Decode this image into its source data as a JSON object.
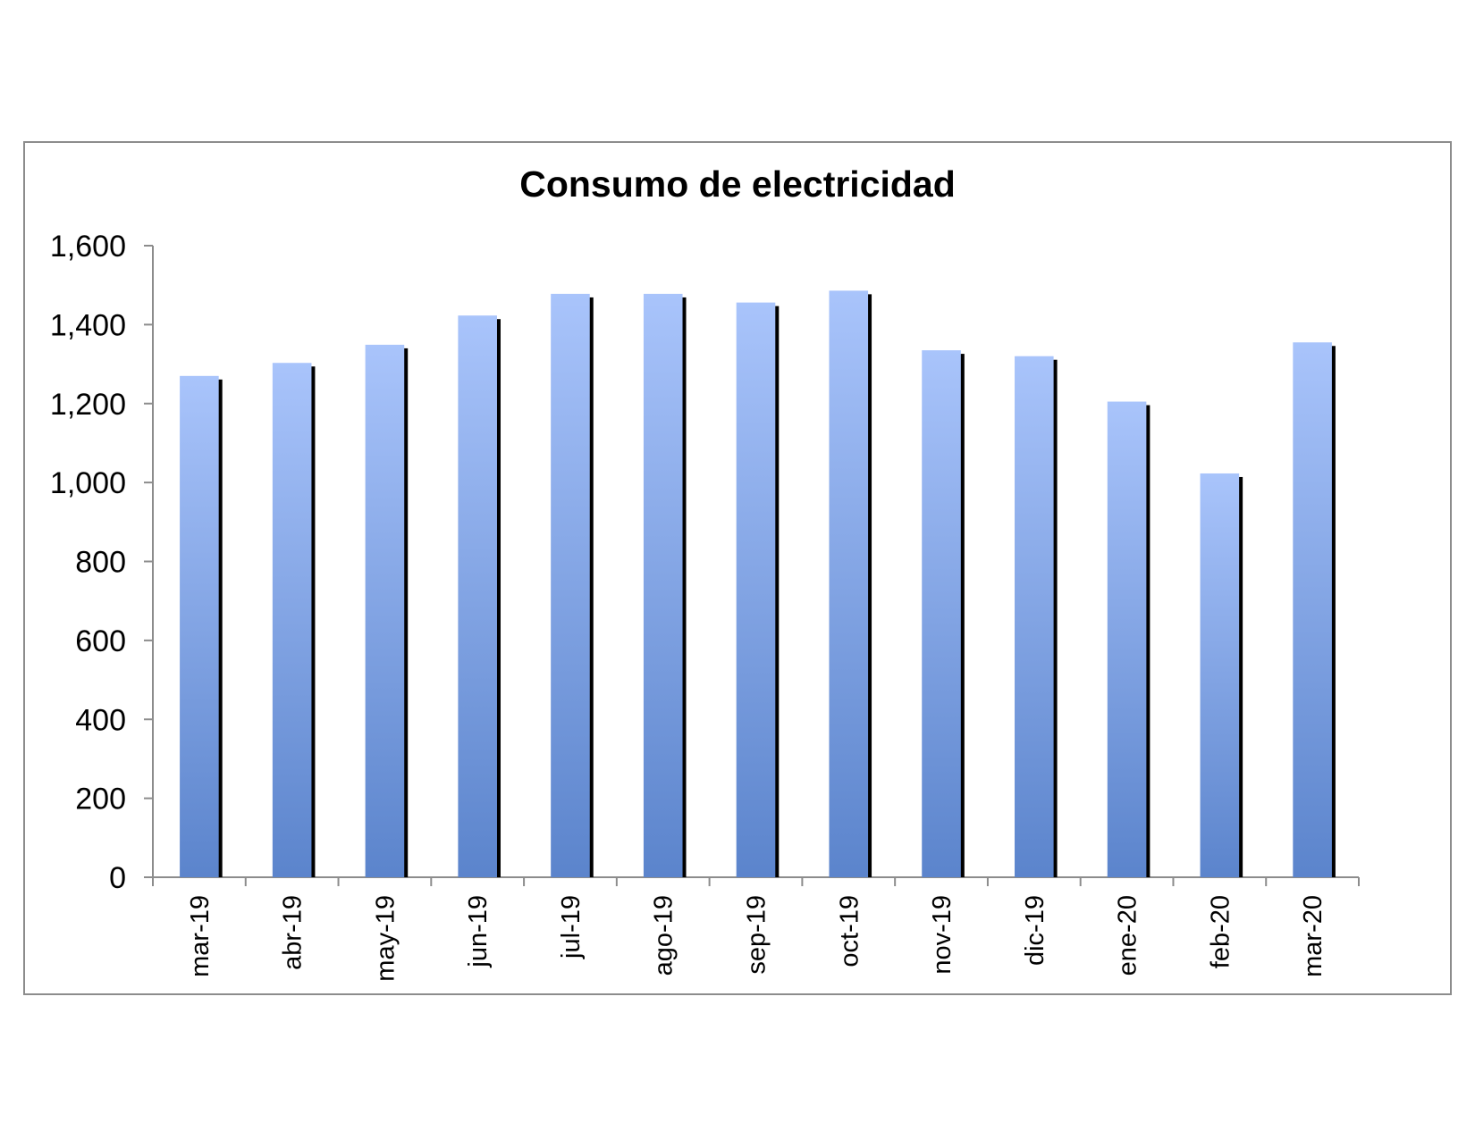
{
  "chart_data": {
    "type": "bar",
    "title": "Consumo de electricidad",
    "xlabel": "",
    "ylabel": "",
    "categories": [
      "mar-19",
      "abr-19",
      "may-19",
      "jun-19",
      "jul-19",
      "ago-19",
      "sep-19",
      "oct-19",
      "nov-19",
      "dic-19",
      "ene-20",
      "feb-20",
      "mar-20"
    ],
    "values": [
      1270,
      1303,
      1349,
      1423,
      1478,
      1478,
      1456,
      1486,
      1335,
      1320,
      1205,
      1023,
      1355
    ],
    "ylim": [
      0,
      1600
    ],
    "yticks": [
      0,
      200,
      400,
      600,
      800,
      1000,
      1200,
      1400,
      1600
    ],
    "ytick_labels": [
      "0",
      "200",
      "400",
      "600",
      "800",
      "1,000",
      "1,200",
      "1,400",
      "1,600"
    ],
    "grid": false,
    "legend": "none",
    "colors": {
      "bar_top": "#a9c4fb",
      "bar_bottom": "#5b84cc",
      "bar_shadow": "#000000",
      "axis": "#8c8c8c",
      "frame": "#8c8c8c"
    }
  }
}
